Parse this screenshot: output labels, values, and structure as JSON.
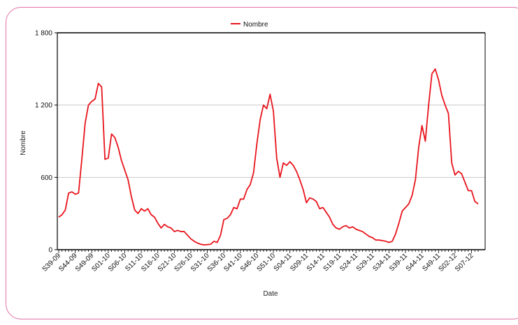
{
  "colors": {
    "frame": "#e36fa6",
    "series": "#e8141c",
    "axis": "#000000",
    "grid": "#c8c8c8"
  },
  "chart_data": {
    "type": "line",
    "xlabel": "Date",
    "ylabel": "Nombre",
    "ylim": [
      0,
      1800
    ],
    "yticks": [
      0,
      600,
      1200,
      1800
    ],
    "ytick_labels": [
      "0",
      "600",
      "1 200",
      "1 800"
    ],
    "grid": "horizontal",
    "legend": "top-center",
    "xtick_labels": [
      "S39-09",
      "S44-09",
      "S49-09",
      "S01-10",
      "S06-10",
      "S11-10",
      "S16-10",
      "S21-10",
      "S26-10",
      "S31-10",
      "S36-10",
      "S41-10",
      "S46-10",
      "S51-10",
      "S04-11",
      "S09-11",
      "S14-11",
      "S19-11",
      "S24-11",
      "S29-11",
      "S34-11",
      "S39-11",
      "S44-11",
      "S49-11",
      "S02-12",
      "S07-12"
    ],
    "series": [
      {
        "name": "Nombre",
        "color": "#e8141c",
        "values": [
          270,
          290,
          330,
          470,
          480,
          460,
          470,
          750,
          1050,
          1200,
          1230,
          1250,
          1380,
          1350,
          750,
          760,
          960,
          930,
          850,
          740,
          660,
          580,
          440,
          330,
          300,
          340,
          320,
          340,
          290,
          270,
          220,
          180,
          210,
          190,
          180,
          150,
          160,
          150,
          150,
          120,
          90,
          70,
          55,
          45,
          40,
          42,
          45,
          70,
          60,
          120,
          250,
          260,
          290,
          350,
          340,
          420,
          420,
          500,
          540,
          640,
          880,
          1080,
          1200,
          1170,
          1290,
          1150,
          760,
          600,
          720,
          700,
          730,
          700,
          650,
          580,
          500,
          390,
          430,
          420,
          400,
          340,
          350,
          310,
          270,
          210,
          180,
          170,
          190,
          200,
          180,
          190,
          170,
          160,
          150,
          130,
          110,
          100,
          80,
          80,
          75,
          70,
          60,
          70,
          130,
          220,
          320,
          350,
          380,
          450,
          580,
          850,
          1030,
          900,
          1200,
          1460,
          1500,
          1410,
          1280,
          1200,
          1130,
          720,
          620,
          650,
          630,
          560,
          490,
          490,
          400,
          380
        ]
      }
    ]
  }
}
